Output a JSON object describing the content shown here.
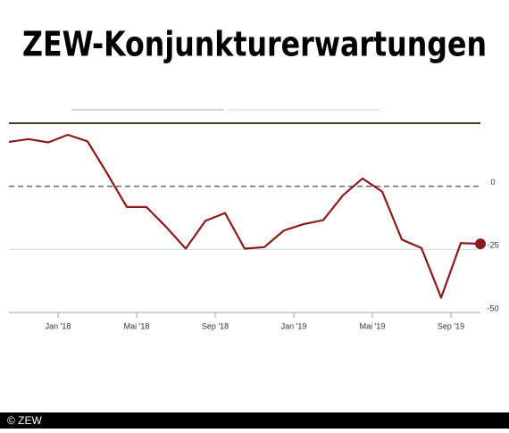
{
  "chart_data": {
    "type": "line",
    "title": "ZEW-Konjunkturerwartungen",
    "categories": [
      null,
      null,
      null,
      "Jan '18",
      null,
      null,
      null,
      "Mai '18",
      null,
      null,
      null,
      "Sep '18",
      null,
      null,
      null,
      "Jan '19",
      null,
      null,
      null,
      "Mai '19",
      null,
      null,
      null,
      "Sep '19",
      null
    ],
    "series": [
      {
        "name": "ZEW-Konjunkturerwartungen",
        "color": "#8b1a1a",
        "values": [
          17.6,
          18.7,
          17.4,
          20.4,
          17.8,
          5.1,
          -8.2,
          -8.2,
          -16.1,
          -24.7,
          -13.7,
          -10.6,
          -24.7,
          -24.1,
          -17.5,
          -15.0,
          -13.4,
          -3.6,
          3.1,
          -2.1,
          -21.1,
          -24.5,
          -44.1,
          -22.5,
          -22.8
        ]
      }
    ],
    "ylim": [
      -50,
      25
    ],
    "yticks": [
      0,
      -25,
      -50
    ],
    "grid": true
  },
  "credit": "© ZEW"
}
